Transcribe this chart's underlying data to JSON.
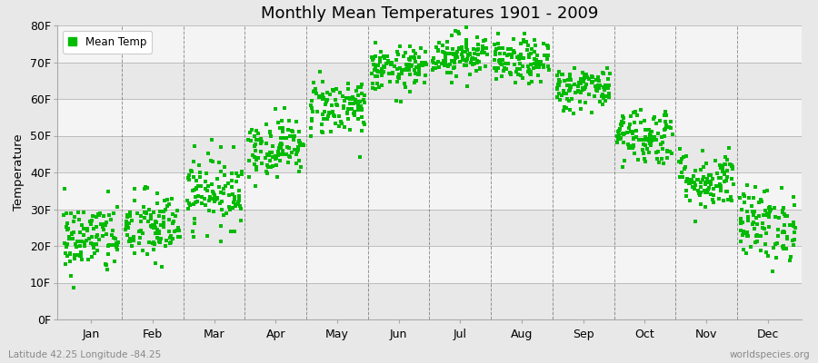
{
  "title": "Monthly Mean Temperatures 1901 - 2009",
  "ylabel": "Temperature",
  "xlabel_labels": [
    "Jan",
    "Feb",
    "Mar",
    "Apr",
    "May",
    "Jun",
    "Jul",
    "Aug",
    "Sep",
    "Oct",
    "Nov",
    "Dec"
  ],
  "ytick_labels": [
    "0F",
    "10F",
    "20F",
    "30F",
    "40F",
    "50F",
    "60F",
    "70F",
    "80F"
  ],
  "ytick_values": [
    0,
    10,
    20,
    30,
    40,
    50,
    60,
    70,
    80
  ],
  "ylim": [
    0,
    80
  ],
  "dot_color": "#00bb00",
  "dot_size": 5,
  "background_color": "#e8e8e8",
  "band_colors": [
    "#e8e8e8",
    "#f4f4f4"
  ],
  "grid_color": "#555555",
  "subtitle": "Latitude 42.25 Longitude -84.25",
  "watermark": "worldspecies.org",
  "legend_label": "Mean Temp",
  "monthly_means": [
    22,
    25,
    35,
    47,
    58,
    68,
    72,
    70,
    63,
    50,
    38,
    26
  ],
  "monthly_stds": [
    5,
    5,
    5,
    4,
    4,
    3,
    3,
    3,
    3,
    4,
    4,
    5
  ],
  "n_years": 109
}
